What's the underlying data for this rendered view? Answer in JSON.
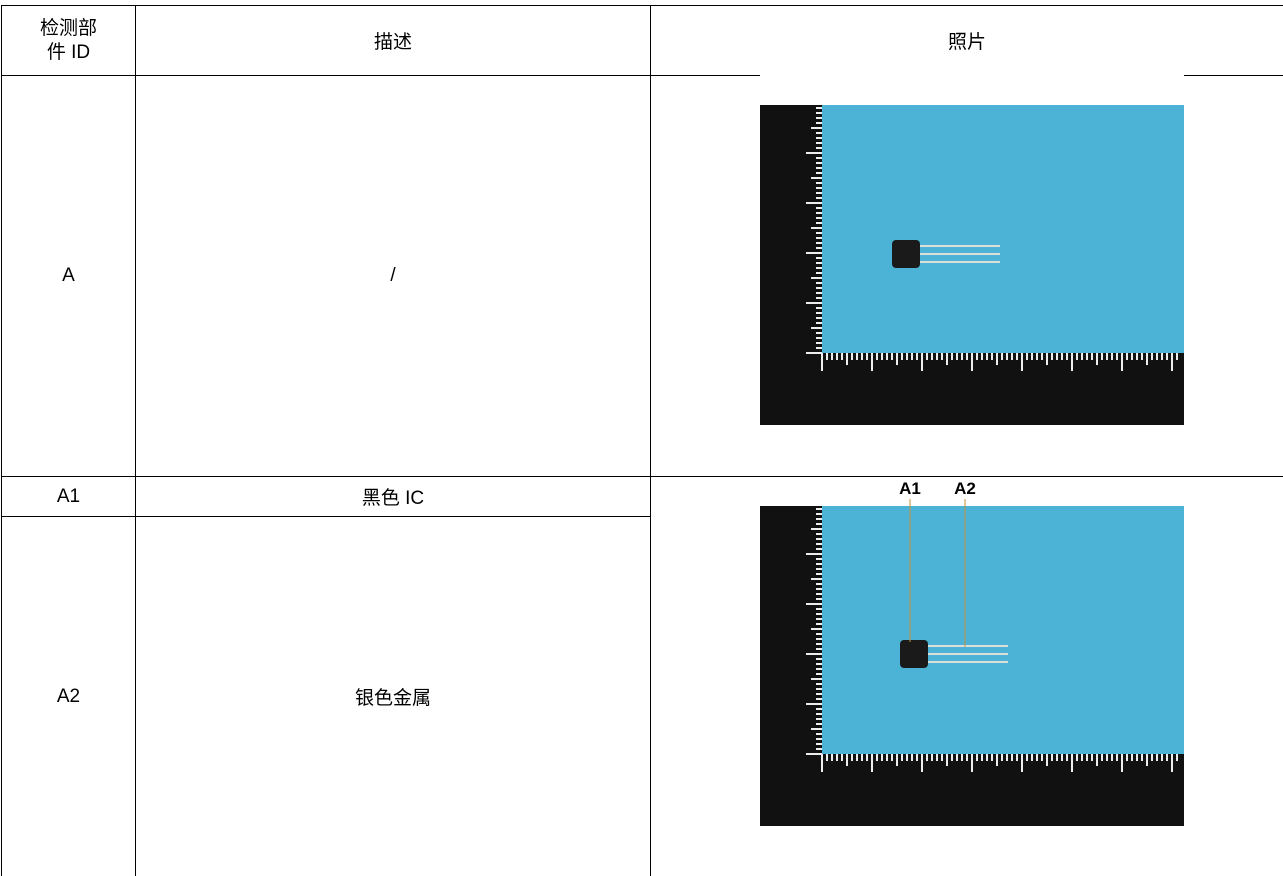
{
  "table": {
    "header": [
      "检测部件 ID",
      "描述",
      "照片"
    ],
    "rows": [
      [
        "A",
        "/"
      ],
      [
        "A1",
        "黑色 IC"
      ],
      [
        "A2",
        "银色金属"
      ]
    ]
  },
  "photo_callouts": [
    "A1",
    "A2"
  ]
}
